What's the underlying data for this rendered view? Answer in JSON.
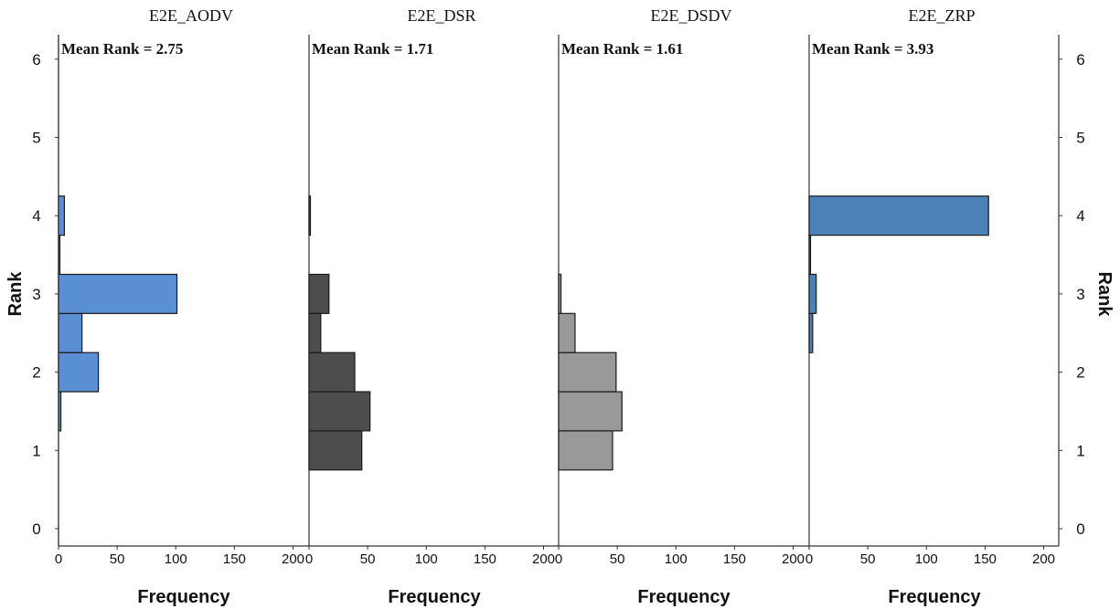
{
  "chart_data": {
    "type": "bar",
    "orientation": "horizontal",
    "ylabel": "Rank",
    "xlabel": "Frequency",
    "ylim": [
      0,
      6
    ],
    "xlim": [
      0,
      200
    ],
    "y_ticks": [
      "0",
      "1",
      "2",
      "3",
      "4",
      "5",
      "6"
    ],
    "x_ticks": [
      "0",
      "50",
      "100",
      "150",
      "200"
    ],
    "bin_centers": [
      1.0,
      1.5,
      2.0,
      2.5,
      3.0,
      3.5,
      4.0
    ],
    "grid": false,
    "panels": [
      {
        "title": "E2E_AODV",
        "mean_label": "Mean Rank = 2.75",
        "color": "#5b8fd3",
        "values": [
          0,
          2,
          34,
          20,
          101,
          1,
          5
        ]
      },
      {
        "title": "E2E_DSR",
        "mean_label": "Mean Rank = 1.71",
        "color": "#4d4d4d",
        "values": [
          45,
          52,
          39,
          10,
          17,
          0,
          1
        ]
      },
      {
        "title": "E2E_DSDV",
        "mean_label": "Mean Rank = 1.61",
        "color": "#999999",
        "values": [
          46,
          54,
          49,
          14,
          2,
          0,
          0
        ]
      },
      {
        "title": "E2E_ZRP",
        "mean_label": "Mean Rank = 3.93",
        "color": "#4b80b8",
        "values": [
          0,
          0,
          0,
          3,
          6,
          1,
          153
        ]
      }
    ]
  }
}
